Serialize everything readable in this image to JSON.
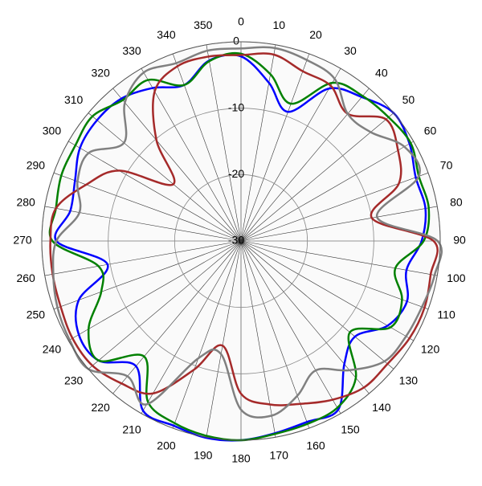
{
  "chart_data": {
    "type": "polar",
    "theta": [
      0,
      10,
      20,
      30,
      40,
      50,
      60,
      70,
      80,
      90,
      100,
      110,
      120,
      130,
      140,
      150,
      160,
      170,
      180,
      190,
      200,
      210,
      220,
      230,
      240,
      250,
      260,
      270,
      280,
      290,
      300,
      310,
      320,
      330,
      340,
      350
    ],
    "thetaticks": [
      0,
      10,
      20,
      30,
      40,
      50,
      60,
      70,
      80,
      90,
      100,
      110,
      120,
      130,
      140,
      150,
      160,
      170,
      180,
      190,
      200,
      210,
      220,
      230,
      240,
      250,
      260,
      270,
      280,
      290,
      300,
      310,
      320,
      330,
      340,
      350
    ],
    "rlim": [
      -30,
      0
    ],
    "rticks": [
      -30,
      -20,
      -10,
      0
    ],
    "grid": true,
    "series": [
      {
        "color": "#0000ff",
        "values": [
          -2.2,
          -5.8,
          -9.3,
          -3.5,
          -1.7,
          0,
          -0.7,
          -2,
          -1.8,
          -2.8,
          -4.7,
          -3.4,
          -4.5,
          -7.6,
          -5.8,
          -0.7,
          -1,
          -0.6,
          0,
          0.1,
          -0.4,
          -0.5,
          -5.4,
          -2,
          -1.8,
          -4,
          -9.6,
          -2.2,
          -3.9,
          -3.4,
          -2,
          -1.7,
          -2,
          -3.4,
          -5,
          -2.4
        ]
      },
      {
        "color": "#008000",
        "values": [
          -1.8,
          -4.5,
          -8,
          -2.5,
          -1.5,
          -1,
          -0.5,
          -1.5,
          -1.3,
          -2.5,
          -6.4,
          -4.2,
          -4,
          -8.6,
          -3.1,
          -1,
          -0.7,
          -0.5,
          0,
          -0.2,
          -0.8,
          -2,
          -7.3,
          -2,
          -3.5,
          -7.6,
          -8.2,
          -1.6,
          -1.7,
          -1.2,
          -1.2,
          -0.8,
          -2.3,
          -2,
          -5,
          -2.5
        ]
      },
      {
        "color": "#a52a2a",
        "values": [
          -2,
          -1.5,
          -2.8,
          -3,
          -5,
          -1.5,
          -2.7,
          -4.7,
          -10,
          -1,
          -1,
          -0.6,
          -0.7,
          -1.2,
          -1.2,
          -2.4,
          -3.9,
          -5,
          -7,
          -14,
          -9.4,
          -3.5,
          -2,
          -0.8,
          -0.7,
          -1.1,
          -1.2,
          -1.3,
          -1.7,
          -5.2,
          -8.8,
          -16.7,
          -10.2,
          -4,
          -2,
          -1.8
        ]
      },
      {
        "color": "#808080",
        "values": [
          -1,
          -0.5,
          -1,
          -1.8,
          -5,
          -4.5,
          -1.6,
          -1.5,
          -9.2,
          -0.4,
          -0.4,
          -1,
          -1.3,
          -1.8,
          -4.6,
          -7.5,
          -5.2,
          -3.3,
          -4.6,
          -12.7,
          -11.2,
          -1.6,
          -3.4,
          0,
          -0.2,
          -0.6,
          -1.3,
          -2.2,
          -5.3,
          -3.8,
          -3.5,
          -7,
          -2.8,
          -0.7,
          -1.5,
          -0.9
        ]
      }
    ]
  }
}
